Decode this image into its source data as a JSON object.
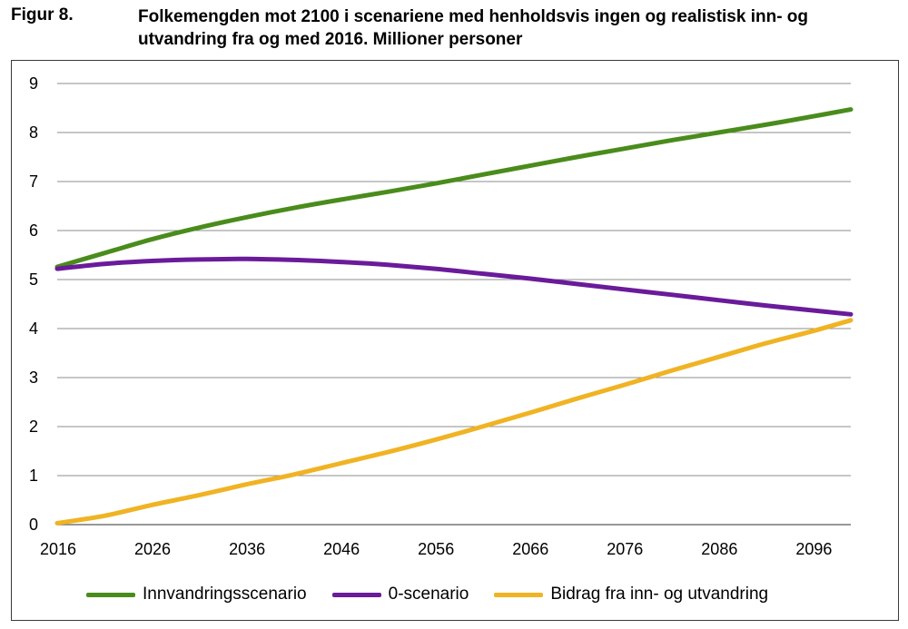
{
  "figure": {
    "label": "Figur 8.",
    "title": "Folkemengden mot 2100 i scenariene med henholdsvis ingen og realistisk inn- og utvandring fra og med 2016. Millioner personer"
  },
  "chart_data": {
    "type": "line",
    "title": "Folkemengden mot 2100 i scenariene med henholdsvis ingen og realistisk inn- og utvandring fra og med 2016. Millioner personer",
    "xlabel": "",
    "ylabel": "",
    "xlim": [
      2016,
      2100
    ],
    "ylim": [
      0,
      9
    ],
    "x_ticks": [
      2016,
      2026,
      2036,
      2046,
      2056,
      2066,
      2076,
      2086,
      2096
    ],
    "y_ticks": [
      0,
      1,
      2,
      3,
      4,
      5,
      6,
      7,
      8,
      9
    ],
    "grid": "horizontal",
    "legend_position": "bottom",
    "x": [
      2016,
      2021,
      2026,
      2031,
      2036,
      2041,
      2046,
      2051,
      2056,
      2061,
      2066,
      2071,
      2076,
      2081,
      2086,
      2091,
      2096,
      2100
    ],
    "series": [
      {
        "name": "Innvandringsscenario",
        "color": "#4a8c1c",
        "values": [
          5.26,
          5.54,
          5.82,
          6.06,
          6.27,
          6.46,
          6.63,
          6.79,
          6.96,
          7.14,
          7.32,
          7.5,
          7.67,
          7.84,
          8.0,
          8.16,
          8.33,
          8.47
        ]
      },
      {
        "name": "0-scenario",
        "color": "#6a1b9a",
        "values": [
          5.22,
          5.32,
          5.38,
          5.41,
          5.42,
          5.4,
          5.36,
          5.3,
          5.22,
          5.12,
          5.02,
          4.91,
          4.8,
          4.69,
          4.58,
          4.47,
          4.37,
          4.29
        ]
      },
      {
        "name": "Bidrag fra inn- og utvandring",
        "color": "#f0b323",
        "values": [
          0.03,
          0.18,
          0.4,
          0.6,
          0.82,
          1.02,
          1.25,
          1.48,
          1.73,
          2.0,
          2.28,
          2.57,
          2.85,
          3.14,
          3.42,
          3.7,
          3.95,
          4.17
        ]
      }
    ]
  }
}
